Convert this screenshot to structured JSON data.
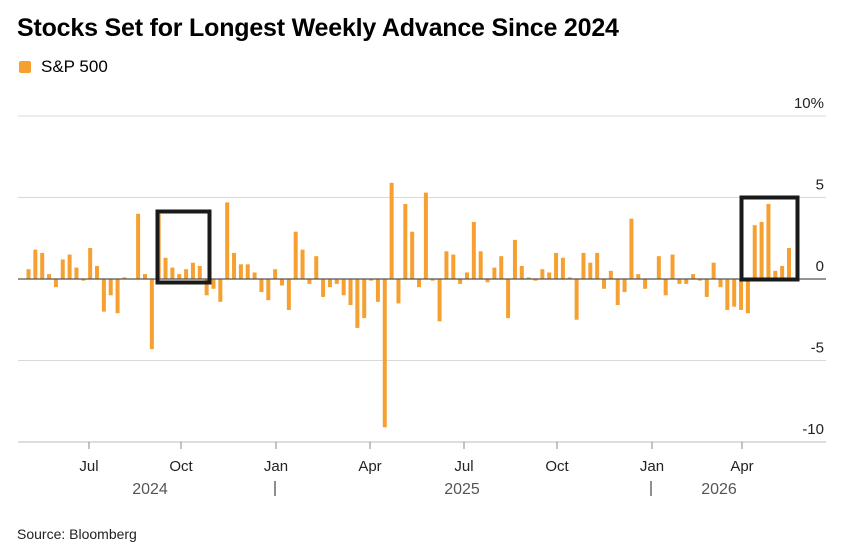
{
  "chart_data": {
    "type": "bar",
    "title": "Stocks Set for Longest Weekly Advance Since 2024",
    "series": [
      {
        "name": "S&P 500",
        "color": "#F5A031",
        "values": [
          0.6,
          1.8,
          1.6,
          0.3,
          -0.5,
          1.2,
          1.5,
          0.7,
          -0.1,
          1.9,
          0.8,
          -2.0,
          -1.0,
          -2.1,
          0.1,
          0.0,
          4.0,
          0.3,
          -4.3,
          4.0,
          1.3,
          0.7,
          0.3,
          0.6,
          1.0,
          0.8,
          -1.0,
          -0.6,
          -1.4,
          4.7,
          1.6,
          0.9,
          0.9,
          0.4,
          -0.8,
          -1.3,
          0.6,
          -0.4,
          -1.9,
          2.9,
          1.8,
          -0.3,
          1.4,
          -1.1,
          -0.5,
          -0.3,
          -1.0,
          -1.6,
          -3.0,
          -2.4,
          -0.1,
          -1.4,
          -9.1,
          5.9,
          -1.5,
          4.6,
          2.9,
          -0.5,
          5.3,
          -0.1,
          -2.6,
          1.7,
          1.5,
          -0.3,
          0.4,
          3.5,
          1.7,
          -0.2,
          0.7,
          1.4,
          -2.4,
          2.4,
          0.8,
          0.1,
          -0.1,
          0.6,
          0.4,
          1.6,
          1.3,
          0.1,
          -2.5,
          1.6,
          1.0,
          1.6,
          -0.6,
          0.5,
          -1.6,
          -0.8,
          3.7,
          0.3,
          -0.6,
          0.0,
          1.4,
          -1.0,
          1.5,
          -0.3,
          -0.3,
          0.3,
          -0.1,
          -1.1,
          1.0,
          -0.5,
          -1.9,
          -1.7,
          -1.9,
          -2.1,
          3.3,
          3.5,
          4.6,
          0.5,
          0.8,
          1.9
        ]
      }
    ],
    "x_ticks": [
      "Jul",
      "Oct",
      "Jan",
      "Apr",
      "Jul",
      "Oct",
      "Jan",
      "Apr"
    ],
    "year_labels": [
      "2024",
      "2025",
      "2026"
    ],
    "y_ticks": [
      {
        "value": 10,
        "label": "10%"
      },
      {
        "value": 5,
        "label": "5"
      },
      {
        "value": 0,
        "label": "0"
      },
      {
        "value": -5,
        "label": "-5"
      },
      {
        "value": -10,
        "label": "-10"
      }
    ],
    "ylim": [
      -10,
      10
    ],
    "grid": true,
    "legend_position": "top-left",
    "highlight_color": "#1a1a1a"
  },
  "source": "Source: Bloomberg"
}
